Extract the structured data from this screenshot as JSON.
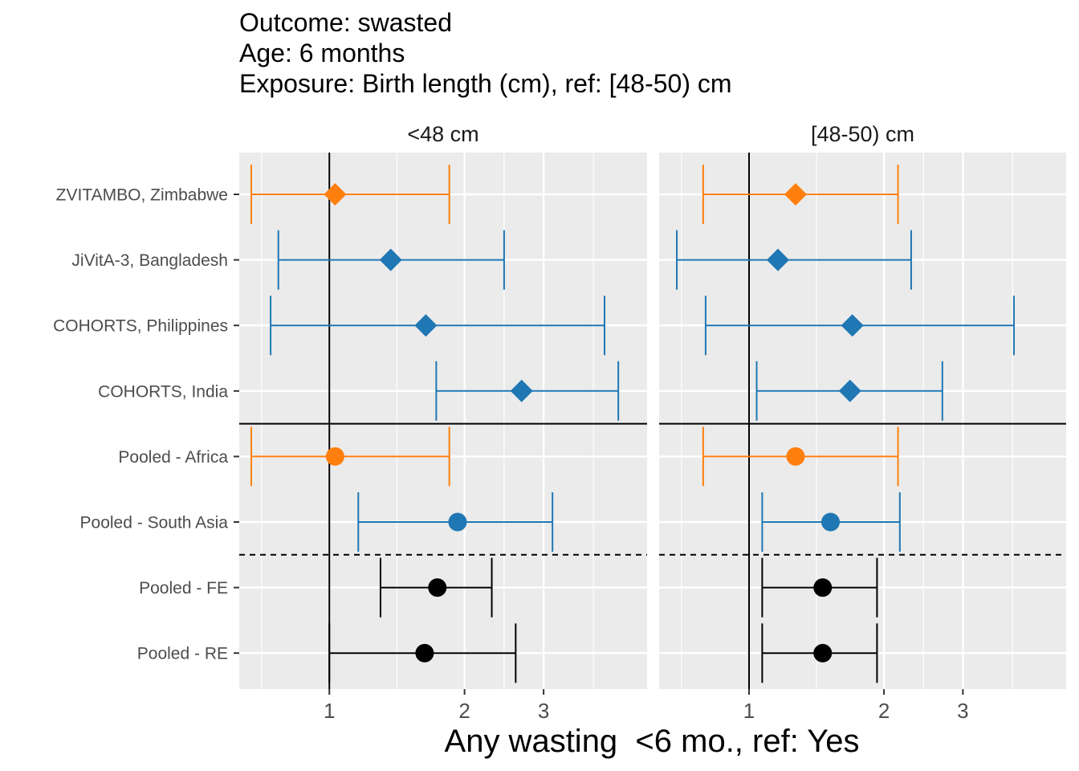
{
  "chart_data": {
    "type": "forest",
    "title_lines": [
      "Outcome: swasted",
      "Age: 6 months",
      "Exposure: Birth length (cm), ref: [48-50) cm"
    ],
    "xlabel": "Any wasting  <6 mo., ref: Yes",
    "x_scale": "log",
    "xlim": [
      0.63,
      5.1
    ],
    "x_ticks": [
      1,
      2,
      3
    ],
    "x_tick_labels": [
      "1",
      "2",
      "3"
    ],
    "reference_line": 1,
    "categories": [
      "ZVITAMBO, Zimbabwe",
      "JiVitA-3, Bangladesh",
      "COHORTS, Philippines",
      "COHORTS, India",
      "Pooled - Africa",
      "Pooled - South Asia",
      "Pooled - FE",
      "Pooled - RE"
    ],
    "colors": {
      "africa": "#FF7F0E",
      "south_asia": "#1F77B4",
      "pooled": "#000000",
      "panel_bg": "#EBEBEB",
      "grid": "#FFFFFF",
      "strip_text": "#1A1A1A",
      "axis_text": "#4D4D4D"
    },
    "legend": "none",
    "panels": [
      {
        "label": "<48 cm",
        "rows": [
          {
            "name": "ZVITAMBO, Zimbabwe",
            "est": 1.03,
            "lower": 0.67,
            "upper": 1.85,
            "region": "africa",
            "shape": "diamond"
          },
          {
            "name": "JiVitA-3, Bangladesh",
            "est": 1.37,
            "lower": 0.77,
            "upper": 2.45,
            "region": "south_asia",
            "shape": "diamond"
          },
          {
            "name": "COHORTS, Philippines",
            "est": 1.64,
            "lower": 0.74,
            "upper": 4.1,
            "region": "south_asia",
            "shape": "diamond"
          },
          {
            "name": "COHORTS, India",
            "est": 2.68,
            "lower": 1.73,
            "upper": 4.4,
            "region": "south_asia",
            "shape": "diamond"
          },
          {
            "name": "Pooled - Africa",
            "est": 1.03,
            "lower": 0.67,
            "upper": 1.85,
            "region": "africa",
            "shape": "circle"
          },
          {
            "name": "Pooled - South Asia",
            "est": 1.93,
            "lower": 1.16,
            "upper": 3.14,
            "region": "south_asia",
            "shape": "circle"
          },
          {
            "name": "Pooled - FE",
            "est": 1.74,
            "lower": 1.3,
            "upper": 2.3,
            "region": "pooled",
            "shape": "circle"
          },
          {
            "name": "Pooled - RE",
            "est": 1.63,
            "lower": 1.0,
            "upper": 2.6,
            "region": "pooled",
            "shape": "circle"
          }
        ]
      },
      {
        "label": "[48-50) cm",
        "rows": [
          {
            "name": "ZVITAMBO, Zimbabwe",
            "est": 1.27,
            "lower": 0.79,
            "upper": 2.15,
            "region": "africa",
            "shape": "diamond"
          },
          {
            "name": "JiVitA-3, Bangladesh",
            "est": 1.16,
            "lower": 0.69,
            "upper": 2.3,
            "region": "south_asia",
            "shape": "diamond"
          },
          {
            "name": "COHORTS, Philippines",
            "est": 1.7,
            "lower": 0.8,
            "upper": 3.9,
            "region": "south_asia",
            "shape": "diamond"
          },
          {
            "name": "COHORTS, India",
            "est": 1.68,
            "lower": 1.04,
            "upper": 2.7,
            "region": "south_asia",
            "shape": "diamond"
          },
          {
            "name": "Pooled - Africa",
            "est": 1.27,
            "lower": 0.79,
            "upper": 2.15,
            "region": "africa",
            "shape": "circle"
          },
          {
            "name": "Pooled - South Asia",
            "est": 1.52,
            "lower": 1.07,
            "upper": 2.17,
            "region": "south_asia",
            "shape": "circle"
          },
          {
            "name": "Pooled - FE",
            "est": 1.46,
            "lower": 1.07,
            "upper": 1.93,
            "region": "pooled",
            "shape": "circle"
          },
          {
            "name": "Pooled - RE",
            "est": 1.46,
            "lower": 1.07,
            "upper": 1.93,
            "region": "pooled",
            "shape": "circle"
          }
        ]
      }
    ]
  }
}
